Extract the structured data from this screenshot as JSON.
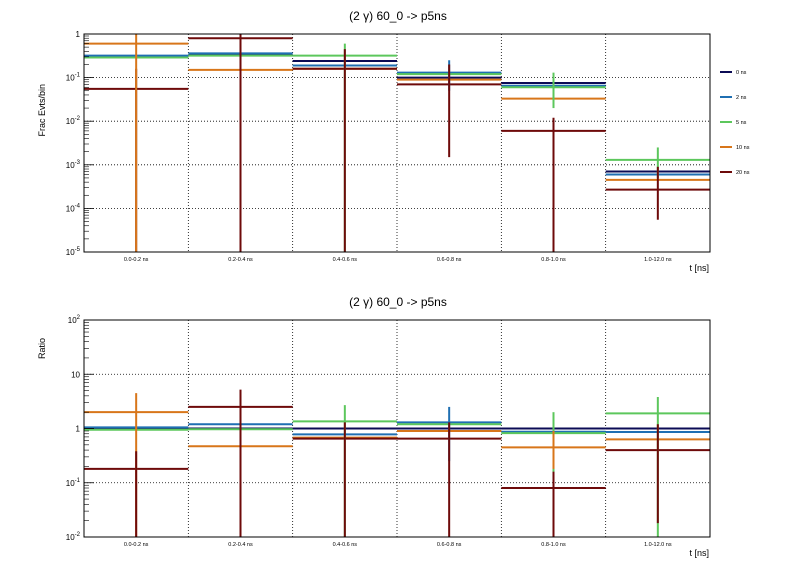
{
  "colors": {
    "0 ns": "#0b0b55",
    "2 ns": "#1f6fb2",
    "5 ns": "#5cc75c",
    "10 ns": "#d8761a",
    "20 ns": "#6e0a0a"
  },
  "chart_data": [
    {
      "type": "bar",
      "style": "step histogram with error bars",
      "title": "(2 γ) 60_0 -> p5ns",
      "ylabel": "Frac Evts/bin",
      "xlabel": "t [ns]",
      "yscale": "log",
      "ylim": [
        1e-05,
        1
      ],
      "y_tick_labels": [
        "10^-5",
        "10^-4",
        "10^-3",
        "10^-2",
        "10^-1",
        "1"
      ],
      "grid": true,
      "legend_position": "right",
      "categories": [
        "0.0-0.2 ns",
        "0.2-0.4 ns",
        "0.4-0.6 ns",
        "0.6-0.8 ns",
        "0.8-1.0 ns",
        "1.0-12.0 ns"
      ],
      "series": [
        {
          "name": "0 ns",
          "values": [
            0.3,
            0.33,
            0.24,
            0.1,
            0.075,
            0.0007
          ]
        },
        {
          "name": "2 ns",
          "values": [
            0.32,
            0.36,
            0.19,
            0.13,
            0.065,
            0.0006
          ]
        },
        {
          "name": "5 ns",
          "values": [
            0.29,
            0.32,
            0.32,
            0.12,
            0.06,
            0.0013
          ]
        },
        {
          "name": "10 ns",
          "values": [
            0.6,
            0.15,
            0.16,
            0.09,
            0.033,
            0.00045
          ]
        },
        {
          "name": "20 ns",
          "values": [
            0.055,
            0.8,
            0.16,
            0.07,
            0.006,
            0.00027
          ]
        }
      ],
      "error_bars": [
        {
          "series": "5 ns",
          "category": "0.4-0.6 ns",
          "low": 1e-05,
          "high": 0.6
        },
        {
          "series": "20 ns",
          "category": "0.0-0.2 ns",
          "low": 1e-05,
          "high": 0.16
        },
        {
          "series": "10 ns",
          "category": "0.0-0.2 ns",
          "low": 1e-05,
          "high": 1.0
        },
        {
          "series": "10 ns",
          "category": "0.2-0.4 ns",
          "low": 0.04,
          "high": 0.5
        },
        {
          "series": "20 ns",
          "category": "0.2-0.4 ns",
          "low": 1e-05,
          "high": 1.0
        },
        {
          "series": "20 ns",
          "category": "0.4-0.6 ns",
          "low": 1e-05,
          "high": 0.45
        },
        {
          "series": "2 ns",
          "category": "0.6-0.8 ns",
          "low": 0.05,
          "high": 0.25
        },
        {
          "series": "20 ns",
          "category": "0.6-0.8 ns",
          "low": 0.0015,
          "high": 0.2
        },
        {
          "series": "5 ns",
          "category": "0.8-1.0 ns",
          "low": 0.02,
          "high": 0.13
        },
        {
          "series": "20 ns",
          "category": "0.8-1.0 ns",
          "low": 1e-05,
          "high": 0.012
        },
        {
          "series": "5 ns",
          "category": "1.0-12.0 ns",
          "low": 0.0005,
          "high": 0.0025
        },
        {
          "series": "20 ns",
          "category": "1.0-12.0 ns",
          "low": 5.5e-05,
          "high": 0.0009
        }
      ]
    },
    {
      "type": "bar",
      "style": "step histogram with error bars",
      "title": "(2 γ) 60_0 -> p5ns",
      "ylabel": "Ratio",
      "xlabel": "t [ns]",
      "yscale": "log",
      "ylim": [
        0.01,
        100
      ],
      "y_tick_labels": [
        "10^-2",
        "10^-1",
        "1",
        "10",
        "10^2"
      ],
      "grid": true,
      "categories": [
        "0.0-0.2 ns",
        "0.2-0.4 ns",
        "0.4-0.6 ns",
        "0.6-0.8 ns",
        "0.8-1.0 ns",
        "1.0-12.0 ns"
      ],
      "series": [
        {
          "name": "0 ns",
          "values": [
            1.0,
            1.0,
            1.0,
            1.0,
            1.0,
            1.0
          ]
        },
        {
          "name": "2 ns",
          "values": [
            1.05,
            1.2,
            0.78,
            1.3,
            0.87,
            0.86
          ]
        },
        {
          "name": "5 ns",
          "values": [
            0.95,
            0.97,
            1.35,
            1.2,
            0.82,
            1.9
          ]
        },
        {
          "name": "10 ns",
          "values": [
            2.0,
            0.47,
            0.68,
            0.9,
            0.45,
            0.63
          ]
        },
        {
          "name": "20 ns",
          "values": [
            0.18,
            2.5,
            0.65,
            0.65,
            0.08,
            0.4
          ]
        }
      ],
      "error_bars": [
        {
          "series": "10 ns",
          "category": "0.0-0.2 ns",
          "low": 0.01,
          "high": 4.5
        },
        {
          "series": "20 ns",
          "category": "0.0-0.2 ns",
          "low": 0.01,
          "high": 0.38
        },
        {
          "series": "20 ns",
          "category": "0.2-0.4 ns",
          "low": 0.01,
          "high": 5.2
        },
        {
          "series": "5 ns",
          "category": "0.4-0.6 ns",
          "low": 0.01,
          "high": 2.7
        },
        {
          "series": "20 ns",
          "category": "0.4-0.6 ns",
          "low": 0.01,
          "high": 1.3
        },
        {
          "series": "2 ns",
          "category": "0.6-0.8 ns",
          "low": 0.25,
          "high": 2.5
        },
        {
          "series": "20 ns",
          "category": "0.6-0.8 ns",
          "low": 0.01,
          "high": 1.3
        },
        {
          "series": "5 ns",
          "category": "0.8-1.0 ns",
          "low": 0.15,
          "high": 2.0
        },
        {
          "series": "10 ns",
          "category": "0.8-1.0 ns",
          "low": 0.18,
          "high": 0.9
        },
        {
          "series": "20 ns",
          "category": "0.8-1.0 ns",
          "low": 0.01,
          "high": 0.16
        },
        {
          "series": "5 ns",
          "category": "1.0-12.0 ns",
          "low": 0.01,
          "high": 3.8
        },
        {
          "series": "20 ns",
          "category": "1.0-12.0 ns",
          "low": 0.018,
          "high": 1.2
        }
      ]
    }
  ]
}
